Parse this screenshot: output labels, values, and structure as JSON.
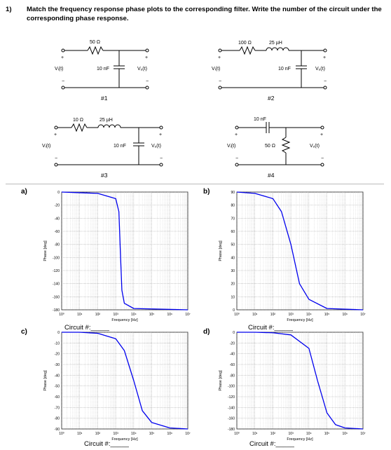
{
  "question": {
    "number": "1)",
    "text": "Match the frequency response phase plots to the corresponding filter. Write the number of the circuit under the corresponding phase response."
  },
  "circuits": [
    {
      "id": "#1",
      "r": "50 Ω",
      "c": "10 nF",
      "vin": "Vᵢ(t)",
      "vout": "Vₒ(t)"
    },
    {
      "id": "#2",
      "r": "100 Ω",
      "l": "25 µH",
      "c": "10 nF",
      "vin": "Vᵢ(t)",
      "vout": "Vₒ(t)"
    },
    {
      "id": "#3",
      "r": "10 Ω",
      "l": "25 µH",
      "c": "10 nF",
      "vin": "Vᵢ(t)",
      "vout": "Vₒ(t)"
    },
    {
      "id": "#4",
      "c": "10 nF",
      "r": "50 Ω",
      "vin": "Vᵢ(t)",
      "vout": "Vₒ(t)"
    }
  ],
  "plots": [
    {
      "letter": "a)",
      "ylabel": "Phase  [deg]",
      "xlabel": "Frequency  [Hz]",
      "answer": "Circuit #:_____",
      "yticks": [
        "0",
        "-20",
        "-40",
        "-60",
        "-80",
        "-100",
        "-120",
        "-140",
        "-160",
        "-180"
      ],
      "xticks": [
        "10⁰",
        "10¹",
        "10²",
        "10³",
        "10⁴",
        "10⁵",
        "10⁶",
        "10⁷"
      ]
    },
    {
      "letter": "b)",
      "ylabel": "Phase  [deg]",
      "xlabel": "Frequency  [Hz]",
      "answer": "Circuit #:_____",
      "yticks": [
        "90",
        "80",
        "70",
        "60",
        "50",
        "40",
        "30",
        "20",
        "10",
        "0"
      ],
      "xticks": [
        "10⁰",
        "10¹",
        "10²",
        "10³",
        "10⁴",
        "10⁵",
        "10⁶",
        "10⁷"
      ]
    },
    {
      "letter": "c)",
      "ylabel": "Phase  [deg]",
      "xlabel": "Frequency  [Hz]",
      "answer": "Circuit #:_____",
      "yticks": [
        "0",
        "-10",
        "-20",
        "-30",
        "-40",
        "-50",
        "-60",
        "-70",
        "-80",
        "-90"
      ],
      "xticks": [
        "10⁰",
        "10¹",
        "10²",
        "10³",
        "10⁴",
        "10⁵",
        "10⁶",
        "10⁷"
      ]
    },
    {
      "letter": "d)",
      "ylabel": "Phase  [deg]",
      "xlabel": "Frequency  [Hz]",
      "answer": "Circuit #:_____",
      "yticks": [
        "0",
        "-20",
        "-40",
        "-60",
        "-80",
        "-100",
        "-120",
        "-140",
        "-160",
        "-180"
      ],
      "xticks": [
        "10⁰",
        "10¹",
        "10²",
        "10³",
        "10⁴",
        "10⁵",
        "10⁶",
        "10⁷"
      ]
    }
  ],
  "chart_data": [
    {
      "type": "line",
      "xscale": "log",
      "xlim": [
        1,
        10000000
      ],
      "ylim": [
        -180,
        0
      ],
      "series": [
        {
          "x": [
            1,
            10,
            100,
            1000,
            1500,
            1800,
            2200,
            3000,
            10000,
            10000000
          ],
          "values": [
            0,
            -1,
            -2,
            -10,
            -30,
            -90,
            -150,
            -170,
            -178,
            -180
          ]
        }
      ]
    },
    {
      "type": "line",
      "xscale": "log",
      "xlim": [
        1,
        10000000
      ],
      "ylim": [
        0,
        90
      ],
      "series": [
        {
          "x": [
            1,
            10,
            100,
            300,
            1000,
            3000,
            10000,
            100000,
            10000000
          ],
          "values": [
            90,
            89,
            85,
            75,
            50,
            20,
            8,
            1,
            0
          ]
        }
      ]
    },
    {
      "type": "line",
      "xscale": "log",
      "xlim": [
        1,
        10000000
      ],
      "ylim": [
        -90,
        0
      ],
      "series": [
        {
          "x": [
            1,
            10,
            100,
            1000,
            3000,
            10000,
            30000,
            100000,
            1000000,
            10000000
          ],
          "values": [
            0,
            0,
            -1,
            -6,
            -17,
            -45,
            -73,
            -84,
            -89,
            -90
          ]
        }
      ]
    },
    {
      "type": "line",
      "xscale": "log",
      "xlim": [
        1,
        10000000
      ],
      "ylim": [
        -180,
        0
      ],
      "series": [
        {
          "x": [
            1,
            10,
            100,
            1000,
            10000,
            30000,
            100000,
            300000,
            1000000,
            10000000
          ],
          "values": [
            0,
            0,
            -1,
            -5,
            -30,
            -90,
            -150,
            -172,
            -178,
            -180
          ]
        }
      ]
    }
  ]
}
